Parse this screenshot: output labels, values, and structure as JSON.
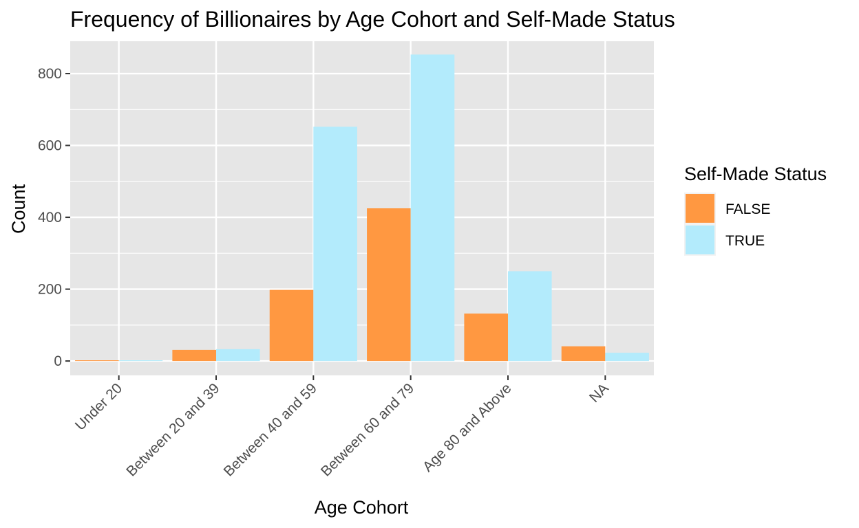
{
  "chart_data": {
    "type": "bar",
    "title": "Frequency of Billionaires by Age Cohort and Self-Made Status",
    "xlabel": "Age Cohort",
    "ylabel": "Count",
    "categories": [
      "Under 20",
      "Between 20 and 39",
      "Between 40 and 59",
      "Between 60 and 79",
      "Age 80 and Above",
      "NA"
    ],
    "series": [
      {
        "name": "FALSE",
        "values": [
          2,
          31,
          198,
          425,
          132,
          41
        ],
        "color": "#FF9841"
      },
      {
        "name": "TRUE",
        "values": [
          2,
          33,
          652,
          853,
          250,
          23
        ],
        "color": "#B3EBFC"
      }
    ],
    "ylim": [
      -40,
      890
    ],
    "yticks": [
      0,
      200,
      400,
      600,
      800
    ],
    "grid": true,
    "panel_color": "#E6E6E6",
    "legend": {
      "title": "Self-Made Status",
      "position": "right"
    }
  }
}
